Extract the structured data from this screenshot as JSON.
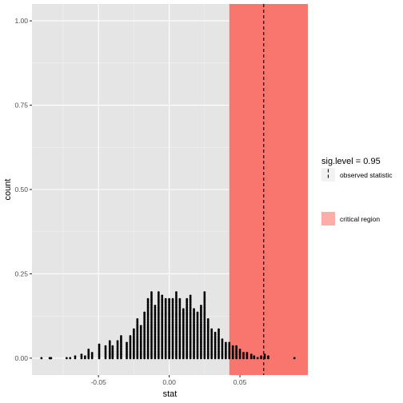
{
  "chart_data": {
    "type": "dotplot",
    "title": "",
    "xlabel": "stat",
    "ylabel": "count",
    "xlim": [
      -0.097,
      0.098
    ],
    "ylim": [
      -0.05,
      1.05
    ],
    "x_ticks": [
      -0.05,
      0.0,
      0.05
    ],
    "x_tick_labels": [
      "-0.05",
      "0.00",
      "0.05"
    ],
    "y_ticks": [
      0.0,
      0.25,
      0.5,
      0.75,
      1.0
    ],
    "y_tick_labels": [
      "0.00",
      "0.25",
      "0.50",
      "0.75",
      "1.00"
    ],
    "grid": true,
    "colors": {
      "panel_background": "#e5e5e5",
      "grid_major": "#ffffff",
      "grid_minor": "#f2f2f2",
      "critical_region": "#f8766d",
      "points": "#000000",
      "observed_line": "#000000"
    },
    "legend": {
      "placement": "right",
      "title": "sig.level = 0.95",
      "items": [
        {
          "label": "observed statistic",
          "kind": "dashed-line"
        },
        {
          "label": "critical region",
          "kind": "fill",
          "color": "#f8766d"
        }
      ]
    },
    "critical_region": {
      "x_start": 0.0425,
      "x_end": 0.098
    },
    "observed_statistic": 0.0668,
    "dot_stacks": [
      {
        "x": -0.0903,
        "y_max": 0.005
      },
      {
        "x": -0.0845,
        "y_max": 0.005
      },
      {
        "x": -0.0842,
        "y_max": 0.005
      },
      {
        "x": -0.0835,
        "y_max": 0.005
      },
      {
        "x": -0.0725,
        "y_max": 0.005
      },
      {
        "x": -0.07,
        "y_max": 0.005
      },
      {
        "x": -0.0665,
        "y_max": 0.01
      },
      {
        "x": -0.062,
        "y_max": 0.015
      },
      {
        "x": -0.0595,
        "y_max": 0.01
      },
      {
        "x": -0.057,
        "y_max": 0.03
      },
      {
        "x": -0.0545,
        "y_max": 0.02
      },
      {
        "x": -0.0495,
        "y_max": 0.045
      },
      {
        "x": -0.045,
        "y_max": 0.04
      },
      {
        "x": -0.042,
        "y_max": 0.055
      },
      {
        "x": -0.04,
        "y_max": 0.04
      },
      {
        "x": -0.0365,
        "y_max": 0.055
      },
      {
        "x": -0.034,
        "y_max": 0.07
      },
      {
        "x": -0.03,
        "y_max": 0.05
      },
      {
        "x": -0.0275,
        "y_max": 0.07
      },
      {
        "x": -0.025,
        "y_max": 0.09
      },
      {
        "x": -0.0225,
        "y_max": 0.12
      },
      {
        "x": -0.02,
        "y_max": 0.1
      },
      {
        "x": -0.0175,
        "y_max": 0.14
      },
      {
        "x": -0.015,
        "y_max": 0.18
      },
      {
        "x": -0.0125,
        "y_max": 0.2
      },
      {
        "x": -0.01,
        "y_max": 0.16
      },
      {
        "x": -0.0075,
        "y_max": 0.2
      },
      {
        "x": -0.005,
        "y_max": 0.19
      },
      {
        "x": -0.0025,
        "y_max": 0.18
      },
      {
        "x": 0.0,
        "y_max": 0.18
      },
      {
        "x": 0.0025,
        "y_max": 0.18
      },
      {
        "x": 0.005,
        "y_max": 0.2
      },
      {
        "x": 0.0075,
        "y_max": 0.18
      },
      {
        "x": 0.01,
        "y_max": 0.15
      },
      {
        "x": 0.0125,
        "y_max": 0.18
      },
      {
        "x": 0.015,
        "y_max": 0.19
      },
      {
        "x": 0.0175,
        "y_max": 0.15
      },
      {
        "x": 0.02,
        "y_max": 0.14
      },
      {
        "x": 0.0225,
        "y_max": 0.16
      },
      {
        "x": 0.025,
        "y_max": 0.2
      },
      {
        "x": 0.0275,
        "y_max": 0.12
      },
      {
        "x": 0.03,
        "y_max": 0.09
      },
      {
        "x": 0.0325,
        "y_max": 0.08
      },
      {
        "x": 0.035,
        "y_max": 0.09
      },
      {
        "x": 0.0375,
        "y_max": 0.06
      },
      {
        "x": 0.04,
        "y_max": 0.05
      },
      {
        "x": 0.0425,
        "y_max": 0.05
      },
      {
        "x": 0.045,
        "y_max": 0.04
      },
      {
        "x": 0.0475,
        "y_max": 0.04
      },
      {
        "x": 0.05,
        "y_max": 0.03
      },
      {
        "x": 0.0525,
        "y_max": 0.02
      },
      {
        "x": 0.055,
        "y_max": 0.02
      },
      {
        "x": 0.058,
        "y_max": 0.015
      },
      {
        "x": 0.06,
        "y_max": 0.01
      },
      {
        "x": 0.0625,
        "y_max": 0.005
      },
      {
        "x": 0.065,
        "y_max": 0.01
      },
      {
        "x": 0.0675,
        "y_max": 0.015
      },
      {
        "x": 0.07,
        "y_max": 0.01
      },
      {
        "x": 0.0885,
        "y_max": 0.005
      }
    ]
  }
}
